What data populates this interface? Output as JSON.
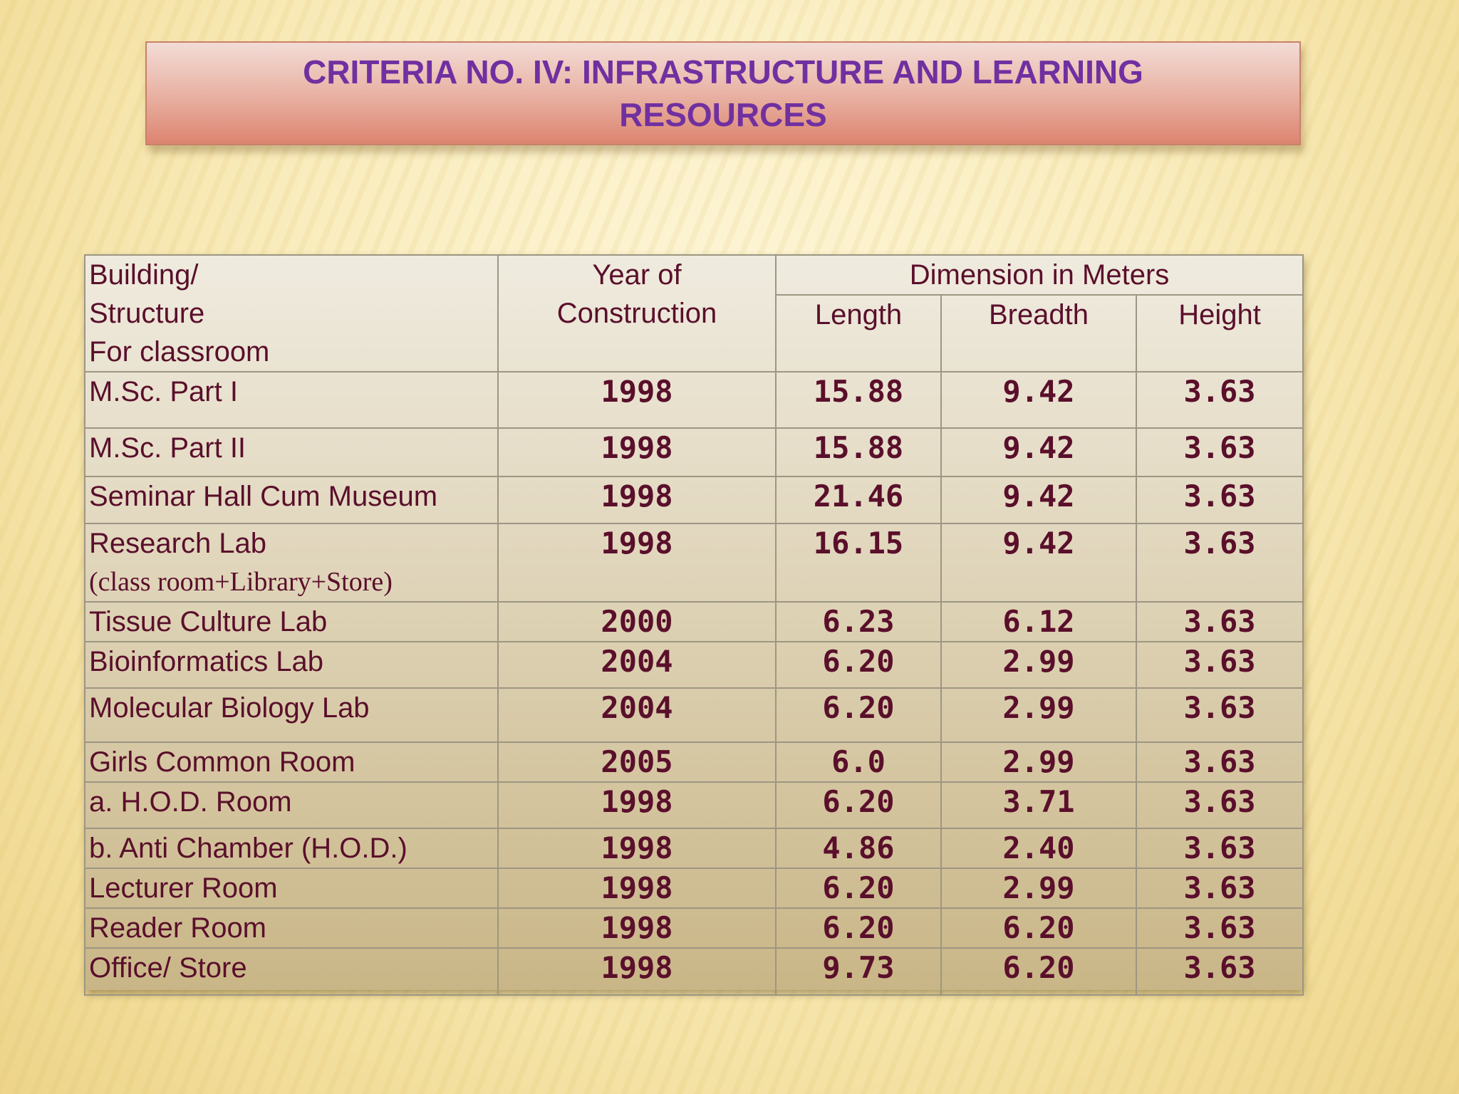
{
  "slide": {
    "title": "CRITERIA NO. IV: INFRASTRUCTURE AND LEARNING RESOURCES"
  },
  "table": {
    "headers": {
      "building_lines": [
        "Building/",
        "Structure",
        "For classroom"
      ],
      "year_lines": [
        "Year of",
        "Construction"
      ],
      "dimension": "Dimension in Meters",
      "length": "Length",
      "breadth": "Breadth",
      "height": "Height"
    },
    "rows": [
      {
        "name": "M.Sc. Part I",
        "year": "1998",
        "length": "15.88",
        "breadth": "9.42",
        "height": "3.63"
      },
      {
        "name": "M.Sc. Part II",
        "year": "1998",
        "length": "15.88",
        "breadth": "9.42",
        "height": "3.63"
      },
      {
        "name": "Seminar Hall Cum Museum",
        "year": "1998",
        "length": "21.46",
        "breadth": "9.42",
        "height": "3.63"
      },
      {
        "name": "Research Lab",
        "sub": "(class room+Library+Store)",
        "year": "1998",
        "length": "16.15",
        "breadth": "9.42",
        "height": "3.63"
      },
      {
        "name": "Tissue Culture Lab",
        "year": "2000",
        "length": "6.23",
        "breadth": "6.12",
        "height": "3.63"
      },
      {
        "name": "Bioinformatics Lab",
        "year": "2004",
        "length": "6.20",
        "breadth": "2.99",
        "height": "3.63"
      },
      {
        "name": "Molecular Biology Lab",
        "year": "2004",
        "length": "6.20",
        "breadth": "2.99",
        "height": "3.63"
      },
      {
        "name": "Girls Common Room",
        "year": "2005",
        "length": "6.0",
        "breadth": "2.99",
        "height": "3.63"
      },
      {
        "name": "a. H.O.D. Room",
        "year": "1998",
        "length": "6.20",
        "breadth": "3.71",
        "height": "3.63"
      },
      {
        "name": "b. Anti Chamber (H.O.D.)",
        "year": "1998",
        "length": "4.86",
        "breadth": "2.40",
        "height": "3.63"
      },
      {
        "name": "Lecturer Room",
        "year": "1998",
        "length": "6.20",
        "breadth": "2.99",
        "height": "3.63"
      },
      {
        "name": "Reader Room",
        "year": "1998",
        "length": "6.20",
        "breadth": "6.20",
        "height": "3.63"
      },
      {
        "name": "Office/ Store",
        "year": "1998",
        "length": "9.73",
        "breadth": "6.20",
        "height": "3.63"
      }
    ]
  }
}
